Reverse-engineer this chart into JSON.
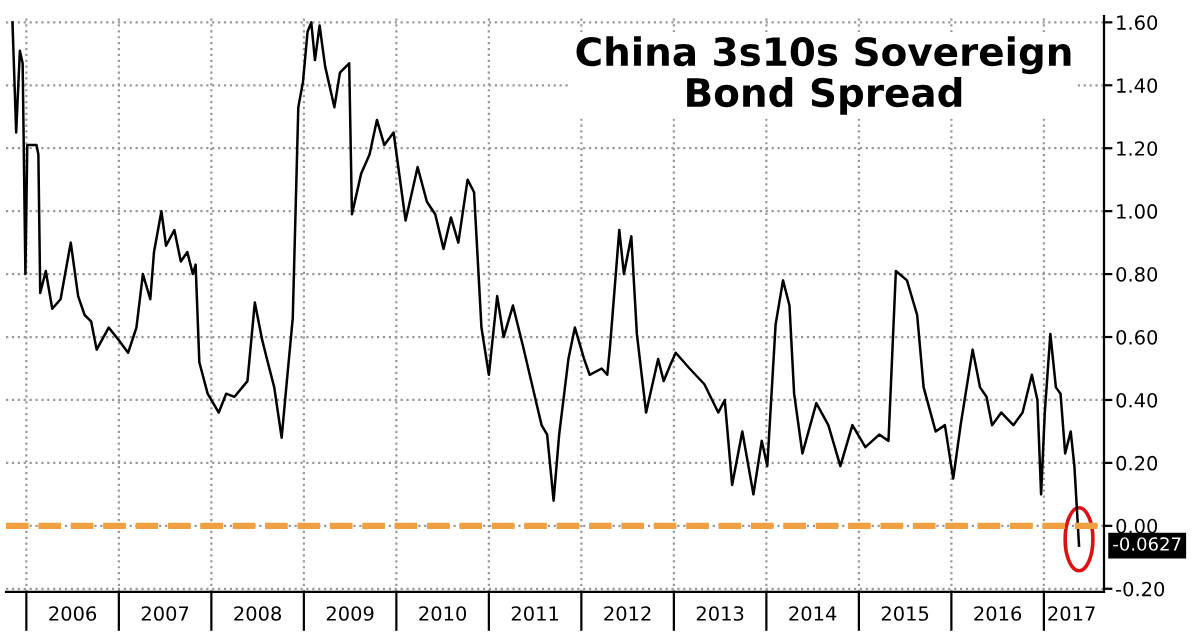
{
  "chart_data": {
    "type": "line",
    "title": "China 3s10s Sovereign\nBond Spread",
    "x": [
      2005.85,
      2005.89,
      2005.93,
      2005.96,
      2005.99,
      2006.01,
      2006.11,
      2006.13,
      2006.15,
      2006.21,
      2006.28,
      2006.37,
      2006.48,
      2006.56,
      2006.63,
      2006.7,
      2006.76,
      2006.89,
      2007.0,
      2007.1,
      2007.19,
      2007.26,
      2007.34,
      2007.38,
      2007.46,
      2007.51,
      2007.6,
      2007.67,
      2007.74,
      2007.8,
      2007.83,
      2007.87,
      2007.96,
      2008.08,
      2008.16,
      2008.25,
      2008.39,
      2008.47,
      2008.55,
      2008.61,
      2008.68,
      2008.76,
      2008.81,
      2008.88,
      2008.94,
      2008.99,
      2009.04,
      2009.08,
      2009.12,
      2009.17,
      2009.23,
      2009.33,
      2009.39,
      2009.49,
      2009.52,
      2009.62,
      2009.71,
      2009.79,
      2009.87,
      2009.97,
      2010.1,
      2010.23,
      2010.33,
      2010.42,
      2010.51,
      2010.59,
      2010.67,
      2010.77,
      2010.84,
      2010.92,
      2011.0,
      2011.09,
      2011.16,
      2011.26,
      2011.37,
      2011.49,
      2011.57,
      2011.63,
      2011.7,
      2011.76,
      2011.86,
      2011.93,
      2012.03,
      2012.09,
      2012.22,
      2012.28,
      2012.31,
      2012.41,
      2012.46,
      2012.54,
      2012.6,
      2012.7,
      2012.83,
      2012.89,
      2012.96,
      2013.02,
      2013.17,
      2013.33,
      2013.48,
      2013.55,
      2013.63,
      2013.74,
      2013.86,
      2013.95,
      2014.01,
      2014.1,
      2014.18,
      2014.25,
      2014.3,
      2014.39,
      2014.54,
      2014.67,
      2014.8,
      2014.93,
      2015.07,
      2015.22,
      2015.32,
      2015.4,
      2015.52,
      2015.63,
      2015.7,
      2015.83,
      2015.93,
      2016.02,
      2016.1,
      2016.23,
      2016.31,
      2016.38,
      2016.44,
      2016.54,
      2016.67,
      2016.77,
      2016.87,
      2016.93,
      2016.97,
      2017.01,
      2017.07,
      2017.13,
      2017.18,
      2017.23,
      2017.29,
      2017.33,
      2017.38
    ],
    "series": [
      {
        "color": "#000000",
        "values": [
          1.6,
          1.25,
          1.51,
          1.47,
          0.8,
          1.21,
          1.21,
          1.18,
          0.74,
          0.81,
          0.69,
          0.72,
          0.9,
          0.73,
          0.67,
          0.65,
          0.56,
          0.63,
          0.59,
          0.55,
          0.63,
          0.8,
          0.72,
          0.87,
          1.0,
          0.89,
          0.94,
          0.84,
          0.87,
          0.8,
          0.83,
          0.52,
          0.42,
          0.36,
          0.42,
          0.41,
          0.46,
          0.71,
          0.59,
          0.52,
          0.44,
          0.28,
          0.44,
          0.66,
          1.33,
          1.41,
          1.57,
          1.6,
          1.48,
          1.59,
          1.46,
          1.33,
          1.44,
          1.47,
          0.99,
          1.12,
          1.18,
          1.29,
          1.21,
          1.25,
          0.97,
          1.14,
          1.03,
          0.99,
          0.88,
          0.98,
          0.9,
          1.1,
          1.06,
          0.63,
          0.48,
          0.73,
          0.6,
          0.7,
          0.57,
          0.42,
          0.32,
          0.29,
          0.08,
          0.29,
          0.53,
          0.63,
          0.53,
          0.48,
          0.5,
          0.48,
          0.57,
          0.94,
          0.8,
          0.92,
          0.61,
          0.36,
          0.53,
          0.46,
          0.51,
          0.55,
          0.5,
          0.45,
          0.36,
          0.4,
          0.13,
          0.3,
          0.1,
          0.27,
          0.19,
          0.64,
          0.78,
          0.7,
          0.42,
          0.23,
          0.39,
          0.32,
          0.19,
          0.32,
          0.25,
          0.29,
          0.27,
          0.81,
          0.78,
          0.67,
          0.44,
          0.3,
          0.32,
          0.15,
          0.32,
          0.56,
          0.44,
          0.41,
          0.32,
          0.36,
          0.32,
          0.36,
          0.48,
          0.4,
          0.1,
          0.36,
          0.61,
          0.44,
          0.42,
          0.23,
          0.3,
          0.19,
          -0.0627
        ]
      }
    ],
    "xlim": [
      2005.78,
      2017.65
    ],
    "xticks": [
      {
        "value": 2006,
        "label": null
      },
      {
        "value": 2007,
        "label": null
      },
      {
        "value": 2008,
        "label": null
      },
      {
        "value": 2009,
        "label": null
      },
      {
        "value": 2010,
        "label": null
      },
      {
        "value": 2011,
        "label": null
      },
      {
        "value": 2012,
        "label": null
      },
      {
        "value": 2013,
        "label": null
      },
      {
        "value": 2014,
        "label": null
      },
      {
        "value": 2015,
        "label": null
      },
      {
        "value": 2016,
        "label": null
      },
      {
        "value": 2017,
        "label": null
      },
      {
        "value": 2006.5,
        "label": "2006"
      },
      {
        "value": 2007.5,
        "label": "2007"
      },
      {
        "value": 2008.5,
        "label": "2008"
      },
      {
        "value": 2009.5,
        "label": "2009"
      },
      {
        "value": 2010.5,
        "label": "2010"
      },
      {
        "value": 2011.5,
        "label": "2011"
      },
      {
        "value": 2012.5,
        "label": "2012"
      },
      {
        "value": 2013.5,
        "label": "2013"
      },
      {
        "value": 2014.5,
        "label": "2014"
      },
      {
        "value": 2015.5,
        "label": "2015"
      },
      {
        "value": 2016.5,
        "label": "2016"
      },
      {
        "value": 2017.3,
        "label": "2017"
      }
    ],
    "ylim": [
      -0.21,
      1.62
    ],
    "yticks": [
      {
        "value": -0.2,
        "label": "-0.20"
      },
      {
        "value": 0,
        "label": "0.00"
      },
      {
        "value": 0.2,
        "label": "0.20"
      },
      {
        "value": 0.4,
        "label": "0.40"
      },
      {
        "value": 0.6,
        "label": "0.60"
      },
      {
        "value": 0.8,
        "label": "0.80"
      },
      {
        "value": 1.0,
        "label": "1.00"
      },
      {
        "value": 1.2,
        "label": "1.20"
      },
      {
        "value": 1.4,
        "label": "1.40"
      },
      {
        "value": 1.6,
        "label": "1.60"
      }
    ],
    "ref_lines": [
      {
        "axis": "y",
        "value": 0,
        "color": "#f0a040",
        "line_style": "dashed"
      }
    ],
    "annotations": [
      {
        "text": "-0.0627",
        "x": 2017.38,
        "y": -0.0627
      }
    ],
    "grid": true,
    "legend": false,
    "marker": "none",
    "line_style": "solid"
  }
}
